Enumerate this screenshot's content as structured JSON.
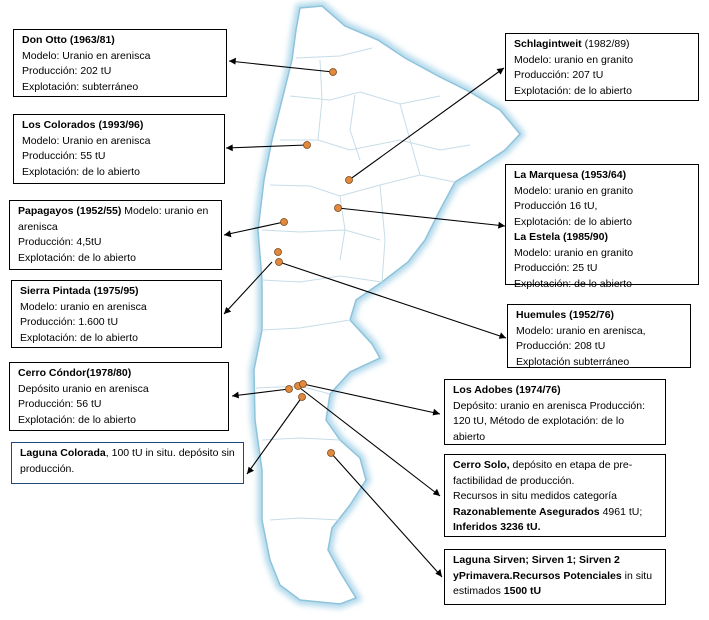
{
  "colors": {
    "land": "#ffffff",
    "coast_glow": "#a9d4e8",
    "border": "#c7dce8",
    "deposit": "#e0893f",
    "arrow": "#000000"
  },
  "deposits": [
    {
      "id": "don-otto",
      "title": "Don Otto",
      "period": "(1963/81)",
      "lines": [
        "Modelo: Uranio en arenisca",
        "Producción: 202 tU",
        "Explotación: subterráneo"
      ]
    },
    {
      "id": "los-colorados",
      "title": "Los Colorados",
      "period": "(1993/96)",
      "lines": [
        "Modelo: Uranio en arenisca",
        "Producción: 55 tU",
        "Explotación: de lo abierto"
      ]
    },
    {
      "id": "papagayos",
      "title": "Papagayos",
      "period": "(1952/55)",
      "first": "Modelo: uranio en arenisca",
      "lines": [
        "Producción: 4,5tU",
        "Explotación: de lo abierto"
      ]
    },
    {
      "id": "sierra-pintada",
      "title": "Sierra Pintada",
      "period": "(1975/95)",
      "lines": [
        "Modelo: uranio en arenisca",
        "Producción: 1.600 tU",
        "Explotación: de lo abierto"
      ]
    },
    {
      "id": "cerro-condor",
      "title": "Cerro Cóndor",
      "period": "(1978/80)",
      "lines": [
        "Depósito uranio en arenisca",
        "Producción: 56 tU",
        "Explotación: de lo abierto"
      ]
    },
    {
      "id": "laguna-colorada",
      "title": "Laguna Colorada",
      "text": ", 100 tU in situ. depósito sin producción."
    },
    {
      "id": "schlagintweit",
      "title": "Schlagintweit",
      "period": "(1982/89)",
      "lines": [
        "Modelo: uranio en granito",
        "Producción: 207 tU",
        "Explotación: de lo abierto"
      ]
    },
    {
      "id": "la-marquesa",
      "title": "La Marquesa",
      "period": "(1953/64)",
      "lines": [
        "Modelo: uranio en granito",
        "Producción 16 tU,",
        "Explotación: de lo abierto"
      ]
    },
    {
      "id": "la-estela",
      "title": "La Estela",
      "period": "(1985/90)",
      "lines": [
        "Modelo: uranio en granito",
        "Producción: 25 tU",
        "Explotación: de lo abierto"
      ]
    },
    {
      "id": "huemules",
      "title": "Huemules",
      "period": "(1952/76)",
      "lines": [
        "Modelo: uranio en arenisca,",
        "Producción: 208 tU",
        "Explotación subterráneo"
      ]
    },
    {
      "id": "los-adobes",
      "title": "Los Adobes",
      "period": "(1974/76)",
      "text": "Depósito: uranio en arenisca Producción: 120 tU, Método de explotación: de lo abierto"
    },
    {
      "id": "cerro-solo",
      "title": "Cerro Solo,",
      "text": " depósito en etapa de pre-factibilidad de producción.",
      "line2": "Recursos in situ medidos categoría",
      "bold3": "Razonablemente Asegurados",
      "text3": " 4961 tU;",
      "bold4": "Inferidos 3236 tU."
    },
    {
      "id": "laguna-sirven",
      "title": "Laguna Sirven; Sirven 1; Sirven 2 yPrimavera.",
      "bold_mid": "Recursos Potenciales",
      "text": " in situ estimados ",
      "bold_end": "1500 tU"
    }
  ]
}
